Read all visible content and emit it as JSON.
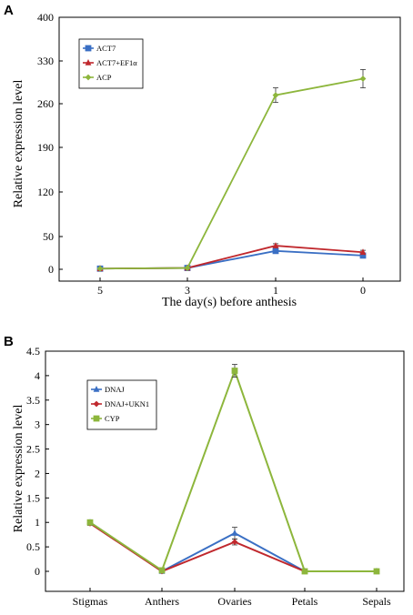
{
  "chart_data": [
    {
      "type": "line",
      "panel_label": "A",
      "title": "",
      "xlabel": "The day(s) before anthesis",
      "ylabel": "Relative expression level",
      "categories": [
        "5",
        "3",
        "1",
        "0"
      ],
      "yticks": [
        0,
        50,
        120,
        190,
        260,
        330,
        400
      ],
      "ylim": [
        0,
        400
      ],
      "legend_position": "top-left",
      "series": [
        {
          "name": "ACT7",
          "color": "#3a6fc4",
          "marker": "square",
          "values": [
            1,
            2,
            28,
            21
          ],
          "errors": [
            0,
            0,
            3,
            3
          ]
        },
        {
          "name": "ACT7+EF1α",
          "color": "#c0282d",
          "marker": "triangle",
          "values": [
            1,
            2,
            36,
            26
          ],
          "errors": [
            0,
            0,
            3,
            3
          ]
        },
        {
          "name": "ACP",
          "color": "#8db63c",
          "marker": "diamond",
          "values": [
            1,
            2,
            274,
            301
          ],
          "errors": [
            0,
            0,
            12,
            15
          ]
        }
      ]
    },
    {
      "type": "line",
      "panel_label": "B",
      "title": "",
      "xlabel": "",
      "ylabel": "Relative expression level",
      "categories": [
        "Stigmas",
        "Anthers",
        "Ovaries",
        "Petals",
        "Sepals"
      ],
      "yticks": [
        0,
        0.5,
        1,
        1.5,
        2,
        2.5,
        3,
        3.5,
        4,
        4.5
      ],
      "ylim": [
        -0.2,
        4.5
      ],
      "legend_position": "top-left",
      "series": [
        {
          "name": "DNAJ",
          "color": "#3a6fc4",
          "marker": "triangle",
          "values": [
            1.0,
            0.0,
            0.78,
            0.0,
            0.0
          ],
          "errors": [
            0.04,
            0.02,
            0.12,
            0,
            0.02
          ]
        },
        {
          "name": "DNAJ+UKN1",
          "color": "#c0282d",
          "marker": "diamond",
          "values": [
            0.98,
            0.0,
            0.6,
            0.0,
            0.0
          ],
          "errors": [
            0.04,
            0.02,
            0.06,
            0,
            0.02
          ]
        },
        {
          "name": "CYP",
          "color": "#8db63c",
          "marker": "square",
          "values": [
            1.0,
            0.02,
            4.1,
            0.0,
            0.0
          ],
          "errors": [
            0.04,
            0.02,
            0.13,
            0,
            0.02
          ]
        }
      ]
    }
  ]
}
